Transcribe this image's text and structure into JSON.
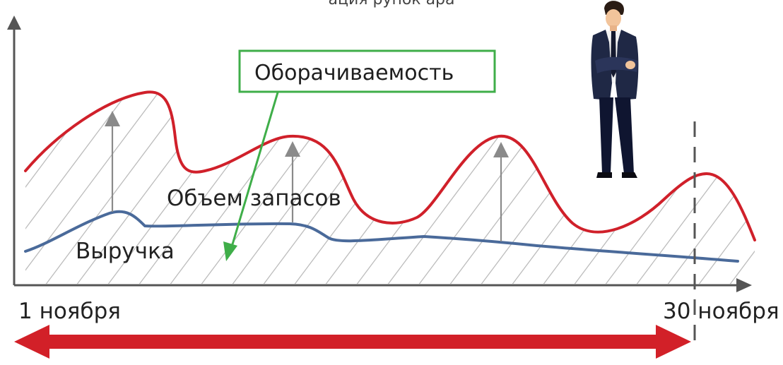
{
  "diagram": {
    "title_fragment": "ация рупок   ара",
    "callout": "Оборачиваемость",
    "inventory_label": "Объем запасов",
    "revenue_label": "Выручка",
    "start_date": "1 ноября",
    "end_date": "30 ноября"
  },
  "colors": {
    "inventory_line": "#d0202a",
    "revenue_line": "#4a6a9a",
    "axis": "#555555",
    "callout_border": "#3fae49",
    "callout_arrow": "#3fae49",
    "period_arrow": "#d22028",
    "hatch": "#bcbcbc",
    "gray_arrows": "#8a8a8a"
  },
  "icons": {
    "person": "businessman-standing-arms-crossed"
  }
}
